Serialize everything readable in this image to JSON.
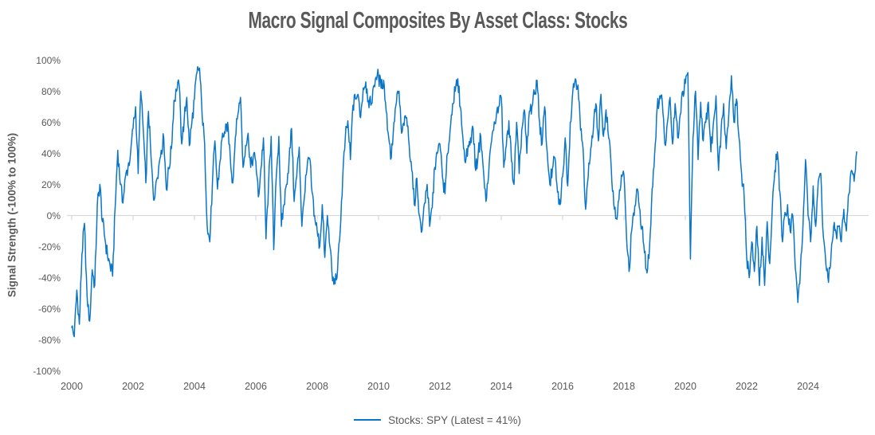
{
  "chart_data": {
    "type": "line",
    "title": "Macro Signal Composites By Asset Class: Stocks",
    "ylabel": "Signal Strength (-100% to 100%)",
    "xlabel": "",
    "ylim": [
      -100,
      100
    ],
    "grid": "zero-axis-line-only",
    "legend_position": "bottom-center",
    "y_tick_labels": [
      "100%",
      "80%",
      "60%",
      "40%",
      "20%",
      "0%",
      "-20%",
      "-40%",
      "-60%",
      "-80%",
      "-100%"
    ],
    "x_tick_labels": [
      "2000",
      "2002",
      "2004",
      "2006",
      "2008",
      "2010",
      "2012",
      "2014",
      "2016",
      "2018",
      "2020",
      "2022",
      "2024"
    ],
    "x_range_years": [
      2000,
      2025.67
    ],
    "high_freq_jitter_pct": 5,
    "series": [
      {
        "name": "Stocks: SPY (Latest = 41%)",
        "color": "#0b76c8",
        "latest_pct": 41,
        "unit": "%",
        "start_year": 2000,
        "points_per_year": 12,
        "values": [
          -72,
          -78,
          -48,
          -70,
          -25,
          -5,
          -52,
          -68,
          -35,
          -45,
          7,
          20,
          -4,
          -15,
          -26,
          -32,
          -39,
          5,
          42,
          20,
          8,
          25,
          31,
          40,
          56,
          70,
          27,
          80,
          55,
          21,
          67,
          38,
          10,
          22,
          31,
          42,
          50,
          17,
          30,
          43,
          74,
          80,
          84,
          46,
          62,
          76,
          45,
          60,
          75,
          92,
          95,
          65,
          46,
          -7,
          -17,
          20,
          48,
          17,
          35,
          53,
          53,
          60,
          38,
          21,
          50,
          65,
          76,
          31,
          45,
          53,
          31,
          38,
          35,
          12,
          30,
          50,
          -15,
          20,
          51,
          -22,
          25,
          51,
          -7,
          7,
          20,
          35,
          56,
          9,
          25,
          44,
          -7,
          12,
          30,
          37,
          15,
          0,
          -10,
          -20,
          7,
          -27,
          0,
          -20,
          -42,
          -44,
          -34,
          -10,
          25,
          50,
          61,
          36,
          71,
          75,
          78,
          63,
          82,
          86,
          74,
          71,
          83,
          89,
          90,
          82,
          87,
          67,
          50,
          37,
          60,
          73,
          80,
          53,
          58,
          63,
          45,
          29,
          7,
          24,
          0,
          -10,
          8,
          20,
          -7,
          5,
          31,
          40,
          46,
          25,
          14,
          40,
          55,
          72,
          80,
          88,
          70,
          50,
          34,
          45,
          50,
          56,
          29,
          40,
          51,
          30,
          9,
          25,
          46,
          55,
          63,
          70,
          76,
          31,
          45,
          61,
          35,
          20,
          60,
          27,
          55,
          68,
          40,
          67,
          70,
          78,
          87,
          60,
          46,
          70,
          40,
          20,
          30,
          37,
          15,
          7,
          25,
          50,
          19,
          60,
          80,
          88,
          84,
          55,
          43,
          4,
          25,
          43,
          55,
          72,
          48,
          78,
          51,
          68,
          50,
          31,
          7,
          -2,
          10,
          26,
          26,
          -14,
          -36,
          -10,
          0,
          17,
          5,
          -7,
          -24,
          -37,
          -20,
          17,
          40,
          70,
          77,
          73,
          46,
          60,
          76,
          46,
          72,
          50,
          65,
          80,
          85,
          92,
          -28,
          50,
          80,
          36,
          73,
          48,
          60,
          73,
          41,
          60,
          77,
          29,
          55,
          72,
          43,
          65,
          90,
          60,
          75,
          50,
          27,
          12,
          -27,
          -40,
          -17,
          -36,
          -7,
          -45,
          -14,
          -45,
          -4,
          -31,
          5,
          29,
          41,
          15,
          -17,
          2,
          7,
          -10,
          0,
          -34,
          -56,
          -35,
          -7,
          36,
          0,
          -17,
          19,
          -7,
          22,
          27,
          -14,
          -32,
          -43,
          -25,
          -7,
          -12,
          -7,
          -17,
          4,
          -10,
          14,
          29,
          22,
          41
        ]
      }
    ]
  },
  "colors": {
    "accent_blue": "#0b76c8",
    "text_gray": "#595959",
    "axis_gray": "#d9d9d9",
    "background": "#ffffff"
  }
}
